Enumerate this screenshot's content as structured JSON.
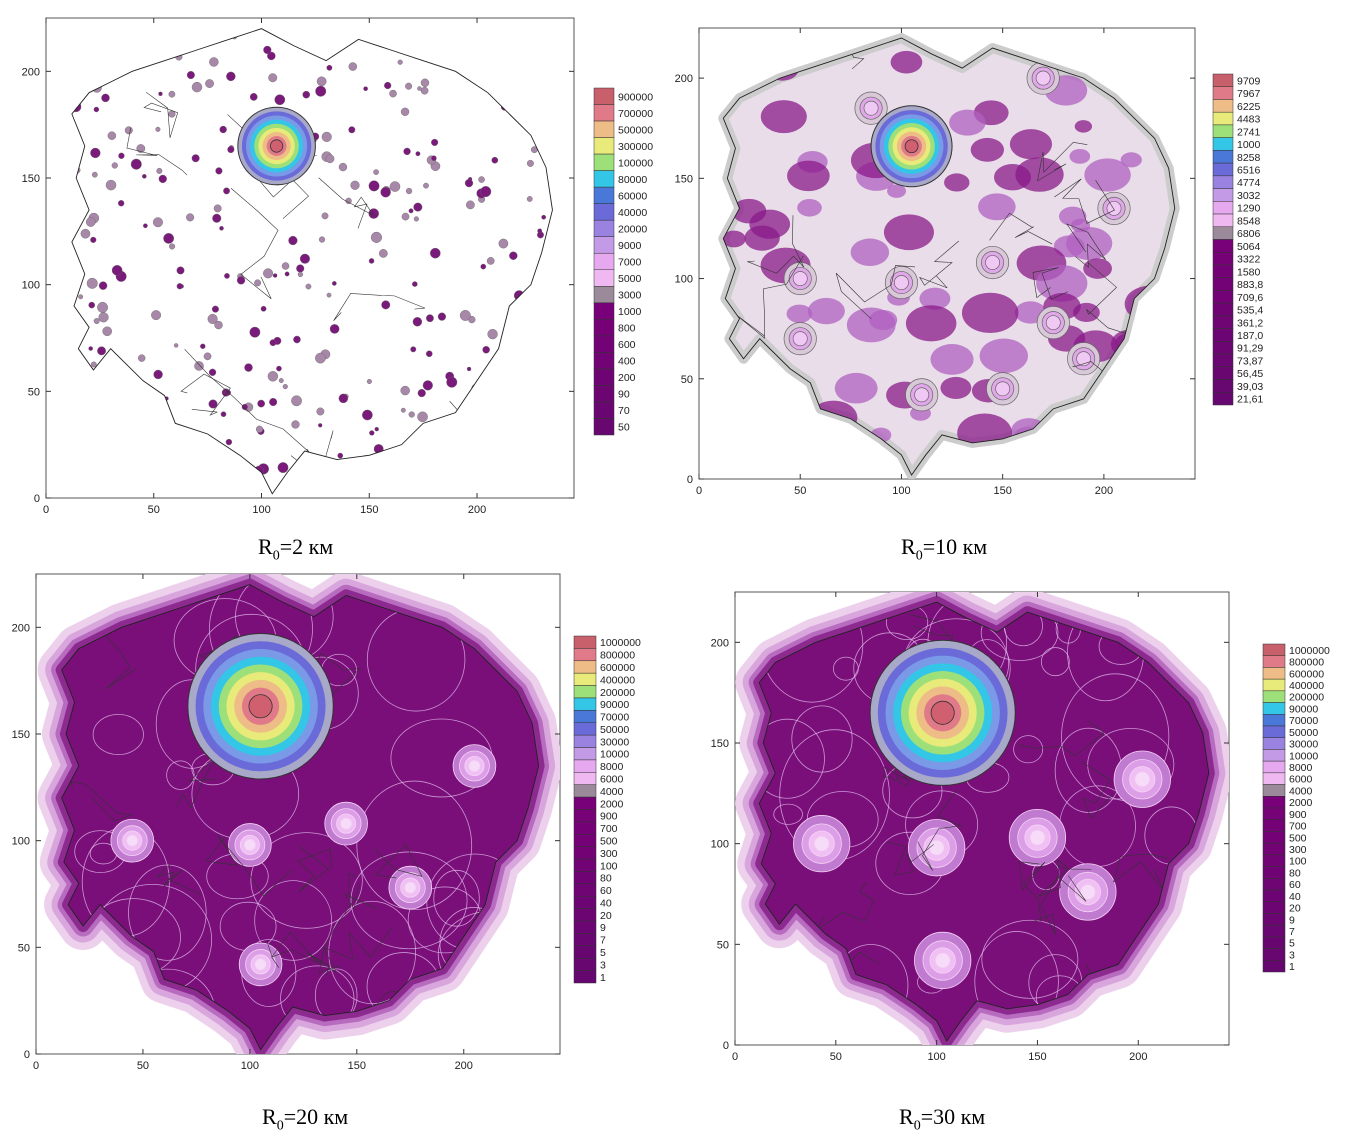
{
  "palette": {
    "low": "#7a0f7a",
    "mid": "#b07ad0",
    "light": "#e6b3ee",
    "blue": "#6a6ad8",
    "cyan": "#33c6e6",
    "yellow": "#e8ea7a",
    "orange": "#eebc86",
    "red": "#e07a88"
  },
  "chart_data": [
    {
      "type": "heatmap",
      "caption_main": "R",
      "caption_sub": "0",
      "caption_rest": "=2 км",
      "xlim": [
        0,
        245
      ],
      "ylim": [
        0,
        225
      ],
      "x_ticks": [
        "0",
        "50",
        "100",
        "150",
        "200"
      ],
      "x_tick_values": [
        0,
        50,
        100,
        150,
        200
      ],
      "y_ticks": [
        "0",
        "50",
        "100",
        "150",
        "200"
      ],
      "y_tick_values": [
        0,
        50,
        100,
        150,
        200
      ],
      "legend_labels": [
        "900000",
        "700000",
        "500000",
        "300000",
        "100000",
        "80000",
        "60000",
        "40000",
        "20000",
        "9000",
        "7000",
        "5000",
        "3000",
        "1000",
        "800",
        "600",
        "400",
        "200",
        "90",
        "70",
        "50"
      ],
      "hot_center": [
        107,
        165
      ],
      "hot_radius": 18,
      "style": "dots"
    },
    {
      "type": "heatmap",
      "caption_main": "R",
      "caption_sub": "0",
      "caption_rest": "=10 км",
      "xlim": [
        0,
        245
      ],
      "ylim": [
        0,
        225
      ],
      "x_ticks": [
        "0",
        "50",
        "100",
        "150",
        "200"
      ],
      "x_tick_values": [
        0,
        50,
        100,
        150,
        200
      ],
      "y_ticks": [
        "0",
        "50",
        "100",
        "150",
        "200"
      ],
      "y_tick_values": [
        0,
        50,
        100,
        150,
        200
      ],
      "legend_labels": [
        "9709",
        "7967",
        "6225",
        "4483",
        "2741",
        "1000",
        "8258",
        "6516",
        "4774",
        "3032",
        "1290",
        "8548",
        "6806",
        "5064",
        "3322",
        "1580",
        "883,8",
        "709,6",
        "535,4",
        "361,2",
        "187,0",
        "91,29",
        "73,87",
        "56,45",
        "39,03",
        "21,61"
      ],
      "hot_center": [
        105,
        166
      ],
      "hot_radius": 20,
      "style": "blobs"
    },
    {
      "type": "heatmap",
      "caption_main": "R",
      "caption_sub": "0",
      "caption_rest": "=20 км",
      "xlim": [
        0,
        245
      ],
      "ylim": [
        0,
        225
      ],
      "x_ticks": [
        "0",
        "50",
        "100",
        "150",
        "200"
      ],
      "x_tick_values": [
        0,
        50,
        100,
        150,
        200
      ],
      "y_ticks": [
        "0",
        "50",
        "100",
        "150",
        "200"
      ],
      "y_tick_values": [
        0,
        50,
        100,
        150,
        200
      ],
      "legend_labels": [
        "1000000",
        "800000",
        "600000",
        "400000",
        "200000",
        "90000",
        "70000",
        "50000",
        "30000",
        "10000",
        "8000",
        "6000",
        "4000",
        "2000",
        "900",
        "700",
        "500",
        "300",
        "100",
        "80",
        "60",
        "40",
        "20",
        "9",
        "7",
        "5",
        "3",
        "1"
      ],
      "hot_center": [
        105,
        163
      ],
      "hot_radius": 34,
      "style": "filled"
    },
    {
      "type": "heatmap",
      "caption_main": "R",
      "caption_sub": "0",
      "caption_rest": "=30 км",
      "xlim": [
        0,
        245
      ],
      "ylim": [
        0,
        225
      ],
      "x_ticks": [
        "0",
        "50",
        "100",
        "150",
        "200"
      ],
      "x_tick_values": [
        0,
        50,
        100,
        150,
        200
      ],
      "y_ticks": [
        "0",
        "50",
        "100",
        "150",
        "200"
      ],
      "y_tick_values": [
        0,
        50,
        100,
        150,
        200
      ],
      "legend_labels": [
        "1000000",
        "800000",
        "600000",
        "400000",
        "200000",
        "90000",
        "70000",
        "50000",
        "30000",
        "10000",
        "8000",
        "6000",
        "4000",
        "2000",
        "900",
        "700",
        "500",
        "300",
        "100",
        "80",
        "60",
        "40",
        "20",
        "9",
        "7",
        "5",
        "3",
        "1"
      ],
      "hot_center": [
        103,
        165
      ],
      "hot_radius": 36,
      "style": "filled"
    }
  ]
}
